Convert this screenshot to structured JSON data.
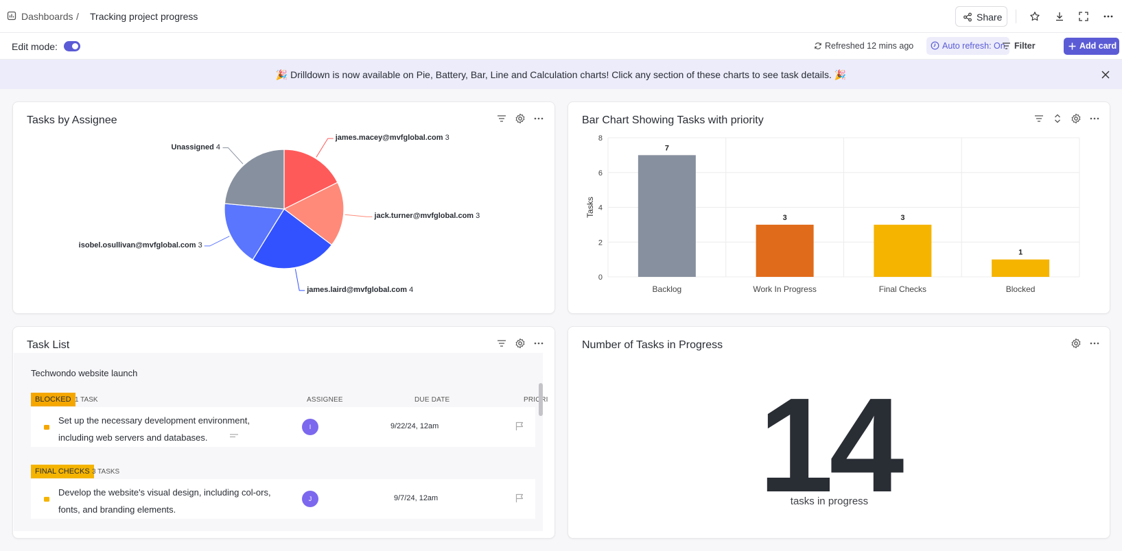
{
  "breadcrumb": {
    "root": "Dashboards",
    "separator": "/",
    "current": "Tracking project progress"
  },
  "header": {
    "share_label": "Share"
  },
  "toolbar": {
    "edit_mode_label": "Edit mode:",
    "edit_mode_on": true,
    "refreshed_text": "Refreshed 12 mins ago",
    "auto_refresh_label": "Auto refresh: On",
    "filter_label": "Filter",
    "add_card_label": "Add card"
  },
  "banner": {
    "text": "🎉 Drilldown is now available on Pie, Battery, Bar, Line and Calculation charts! Click any section of these charts to see task details. 🎉"
  },
  "colors": {
    "accent": "#5b5bd6",
    "blocked": "#f5a700",
    "final_checks": "#f5b400",
    "work_in_progress": "#e06b1a",
    "backlog": "#87909e"
  },
  "cards": {
    "assignee": {
      "title": "Tasks by Assignee"
    },
    "priority": {
      "title": "Bar Chart Showing Tasks with priority"
    },
    "tasklist": {
      "title": "Task List"
    },
    "inprogress": {
      "title": "Number of Tasks in Progress",
      "value": "14",
      "caption": "tasks in progress"
    }
  },
  "chart_data": [
    {
      "type": "pie",
      "title": "Tasks by Assignee",
      "slices": [
        {
          "label": "james.macey@mvfglobal.com",
          "value": 3,
          "color": "#ff5a5a"
        },
        {
          "label": "jack.turner@mvfglobal.com",
          "value": 3,
          "color": "#ff8a7a"
        },
        {
          "label": "james.laird@mvfglobal.com",
          "value": 4,
          "color": "#3352ff"
        },
        {
          "label": "isobel.osullivan@mvfglobal.com",
          "value": 3,
          "color": "#5a76ff"
        },
        {
          "label": "Unassigned",
          "value": 4,
          "color": "#87909e"
        }
      ]
    },
    {
      "type": "bar",
      "title": "Bar Chart Showing Tasks with priority",
      "categories": [
        "Backlog",
        "Work In Progress",
        "Final Checks",
        "Blocked"
      ],
      "values": [
        7,
        3,
        3,
        1
      ],
      "colors": [
        "#87909e",
        "#e06b1a",
        "#f5b400",
        "#f5b400"
      ],
      "ylabel": "Tasks",
      "ylim": [
        0,
        8
      ],
      "yticks": [
        "0",
        "2",
        "4",
        "6",
        "8"
      ],
      "grid": true
    }
  ],
  "task_list": {
    "project": "Techwondo website launch",
    "columns": {
      "assignee": "ASSIGNEE",
      "due_date": "DUE DATE",
      "priority": "PRIORI"
    },
    "groups": [
      {
        "status": "BLOCKED",
        "count": "1 TASK",
        "tasks": [
          {
            "name": "Set up the necessary development environment, including web servers and databases.",
            "assignee_initial": "I",
            "due": "9/22/24, 12am"
          }
        ]
      },
      {
        "status": "FINAL CHECKS",
        "count": "3 TASKS",
        "tasks": [
          {
            "name": "Develop the website's visual design, including col-ors, fonts, and branding elements.",
            "assignee_initial": "J",
            "due": "9/7/24, 12am"
          }
        ]
      }
    ]
  }
}
